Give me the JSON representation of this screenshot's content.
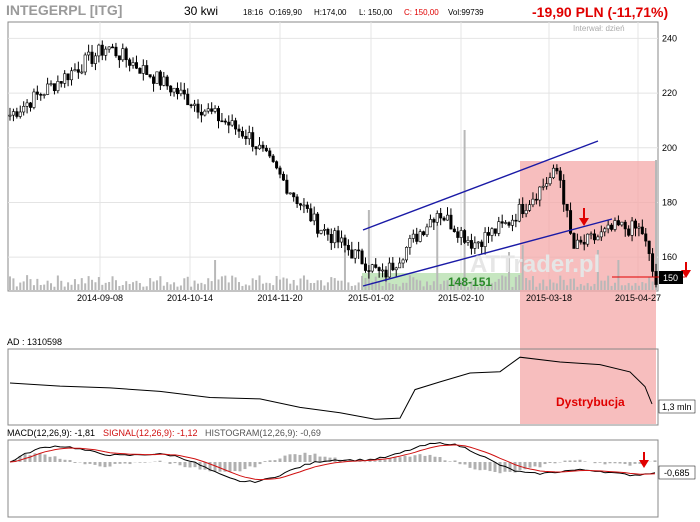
{
  "header": {
    "ticker": "INTEGERPL [ITG]",
    "interval": "30 kwi",
    "time": "18:16",
    "open": "O:169,90",
    "high": "H:174,00",
    "low": "L: 150,00",
    "close": "C: 150,00",
    "volume": "Vol:99739",
    "change": "-19,90 PLN (-11,71%)",
    "period": "Interwał: dzień"
  },
  "watermark": "ATTrader.pl",
  "colors": {
    "price": "#000000",
    "channel": "#1a1aa6",
    "distribution_zone": "#f4a8a8",
    "support_zone": "#b8e0b0",
    "signal": "#d01010",
    "histogram": "#b0b0b0",
    "change_text": "#e00000",
    "support_label": "#2a8a2a",
    "arrows": "#e00000"
  },
  "chart_data": [
    {
      "type": "candlestick",
      "x_labels": [
        "2014-09-08",
        "2014-10-14",
        "2014-11-20",
        "2015-01-02",
        "2015-02-10",
        "2015-03-18",
        "2015-04-27"
      ],
      "y_ticks": [
        160,
        180,
        200,
        220,
        240
      ],
      "ylim": [
        148,
        246
      ],
      "current_price_label": "150",
      "support_zone_label": "148-151",
      "support_zone": [
        148,
        151
      ],
      "horizontal_level": 157,
      "grid": true,
      "key_points": [
        {
          "date": "2014-08-01",
          "price": 212
        },
        {
          "date": "2014-09-11",
          "price": 237
        },
        {
          "date": "2014-10-20",
          "price": 215
        },
        {
          "date": "2014-11-10",
          "price": 204
        },
        {
          "date": "2014-12-08",
          "price": 172
        },
        {
          "date": "2015-01-05",
          "price": 153
        },
        {
          "date": "2015-01-28",
          "price": 177
        },
        {
          "date": "2015-02-12",
          "price": 165
        },
        {
          "date": "2015-02-26",
          "price": 172
        },
        {
          "date": "2015-03-12",
          "price": 185
        },
        {
          "date": "2015-03-20",
          "price": 192
        },
        {
          "date": "2015-03-26",
          "price": 163
        },
        {
          "date": "2015-04-14",
          "price": 171
        },
        {
          "date": "2015-04-24",
          "price": 170
        },
        {
          "date": "2015-04-30",
          "price": 150
        }
      ],
      "channel_lines": [
        {
          "from": {
            "date": "2015-01-02",
            "price": 173
          },
          "to": {
            "date": "2015-04-10",
            "price": 200
          }
        },
        {
          "from": {
            "date": "2015-01-02",
            "price": 150
          },
          "to": {
            "date": "2015-04-10",
            "price": 175
          }
        }
      ]
    },
    {
      "type": "line",
      "title": "AD : 1310598",
      "last_value_label": "1,3 mln",
      "annotation": "Dystrybucja"
    },
    {
      "type": "line",
      "title_parts": [
        "MACD(12,26,9): -1,81",
        "SIGNAL(12,26,9): -1,12",
        "HISTOGRAM(12,26,9): -0,69"
      ],
      "last_value_label": "-0,685"
    }
  ]
}
